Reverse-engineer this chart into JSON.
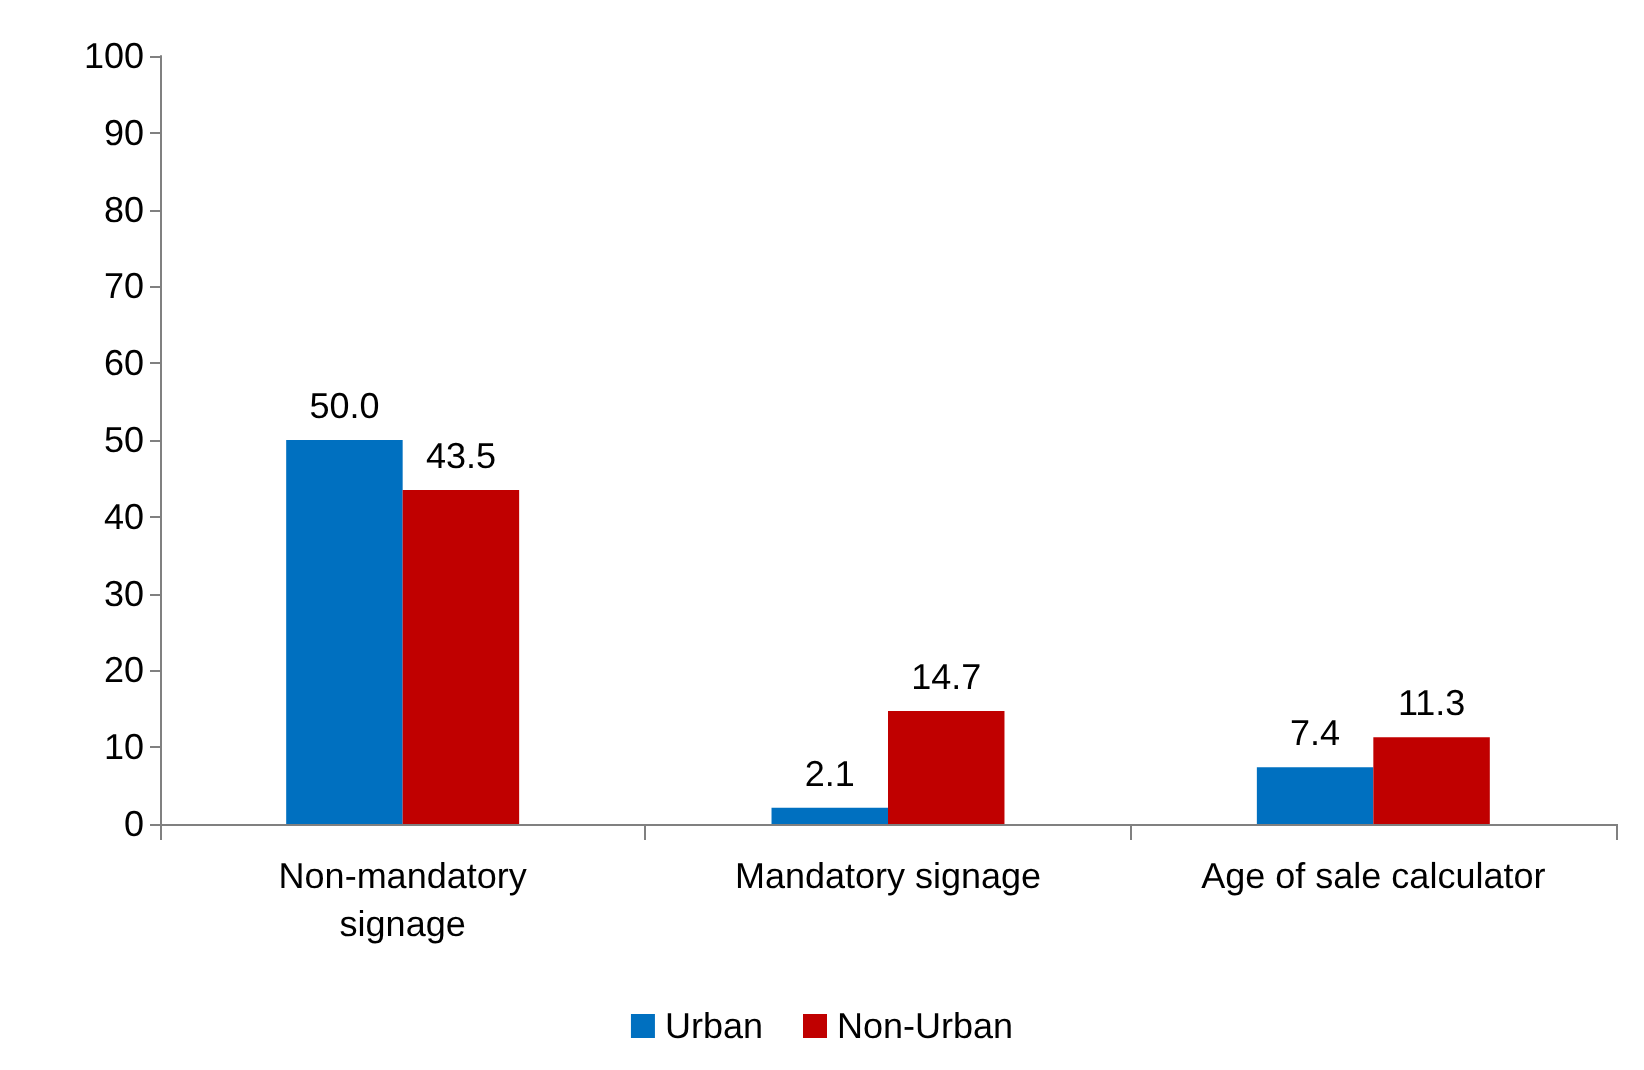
{
  "chart_data": {
    "type": "bar",
    "categories": [
      "Non-mandatory\nsignage",
      "Mandatory signage",
      "Age of sale calculator"
    ],
    "series": [
      {
        "name": "Urban",
        "color": "#0070c0",
        "values": [
          50.0,
          2.1,
          7.4
        ],
        "value_labels": [
          "50.0",
          "2.1",
          "7.4"
        ]
      },
      {
        "name": "Non-Urban",
        "color": "#c00000",
        "values": [
          43.5,
          14.7,
          11.3
        ],
        "value_labels": [
          "43.5",
          "14.7",
          "11.3"
        ]
      }
    ],
    "ylim": [
      0,
      100
    ],
    "yticks": [
      0,
      10,
      20,
      30,
      40,
      50,
      60,
      70,
      80,
      90,
      100
    ],
    "grid": false,
    "legend": "bottom"
  }
}
